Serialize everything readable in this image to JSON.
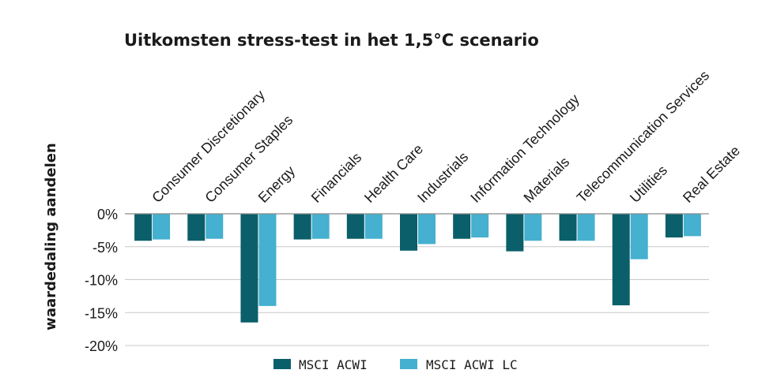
{
  "chart_data": {
    "type": "bar",
    "title": "Uitkomsten stress-test in het 1,5°C scenario",
    "ylabel": "waardedaling aandelen",
    "xlabel": "",
    "ylim": [
      -20,
      0
    ],
    "yticks": [
      0,
      -5,
      -10,
      -15,
      -20
    ],
    "ytick_labels": [
      "0%",
      "-5%",
      "-10%",
      "-15%",
      "-20%"
    ],
    "grid": true,
    "legend_position": "bottom",
    "categories": [
      "Consumer Discretionary",
      "Consumer Staples",
      "Energy",
      "Financials",
      "Health Care",
      "Industrials",
      "Information Technology",
      "Materials",
      "Telecommunication Services",
      "Utilities",
      "Real Estate"
    ],
    "series": [
      {
        "name": "MSCI ACWI",
        "color": "#0b5f6a",
        "values": [
          -4.1,
          -4.1,
          -16.5,
          -3.9,
          -3.8,
          -5.6,
          -3.8,
          -5.7,
          -4.1,
          -13.9,
          -3.6
        ]
      },
      {
        "name": "MSCI ACWI LC",
        "color": "#45b0cf",
        "values": [
          -3.9,
          -3.8,
          -14.0,
          -3.8,
          -3.8,
          -4.6,
          -3.6,
          -4.1,
          -4.1,
          -6.9,
          -3.4
        ]
      }
    ]
  }
}
